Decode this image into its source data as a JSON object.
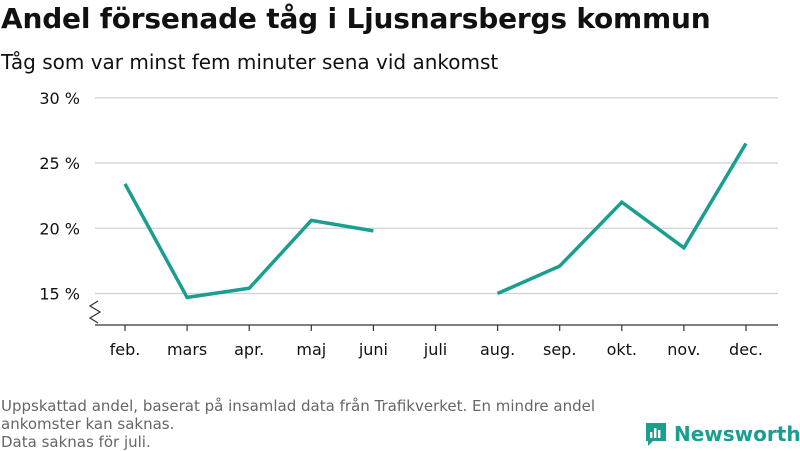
{
  "title": "Andel försenade tåg i Ljusnarsbergs kommun",
  "subtitle": "Tåg som var minst fem minuter sena vid ankomst",
  "footnote": {
    "line1": "Uppskattad andel, baserat på insamlad data från Trafikverket. En mindre andel ankomster kan saknas.",
    "line2": "Data saknas för juli."
  },
  "brand": {
    "name": "Newsworthy",
    "color": "#1a9e8f",
    "icon": "bar-chart-logo-icon"
  },
  "colors": {
    "line": "#1a9e8f",
    "grid": "#d0d0d0",
    "axis": "#333333"
  },
  "chart_data": {
    "type": "line",
    "categories": [
      "feb.",
      "mars",
      "apr.",
      "maj",
      "juni",
      "juli",
      "aug.",
      "sep.",
      "okt.",
      "nov.",
      "dec."
    ],
    "series": [
      {
        "values": [
          23.4,
          14.7,
          15.4,
          20.6,
          19.8,
          null,
          15.0,
          17.1,
          22.0,
          18.5,
          26.5
        ]
      }
    ],
    "yticks": [
      15,
      20,
      25,
      30
    ],
    "ytick_labels": [
      "15 %",
      "20 %",
      "25 %",
      "30 %"
    ],
    "ylim": [
      13,
      30
    ],
    "axis_break": true,
    "grid": "horizontal",
    "xlabel": "",
    "ylabel": ""
  }
}
